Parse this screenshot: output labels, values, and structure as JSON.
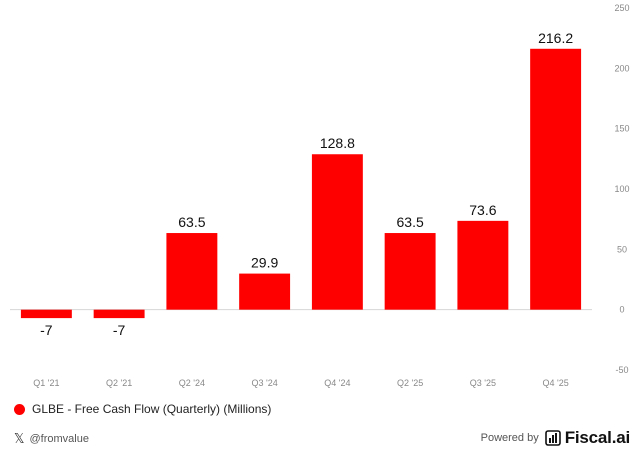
{
  "chart_data": {
    "type": "bar",
    "categories": [
      "Q1 '21",
      "Q2 '21",
      "Q2 '24",
      "Q3 '24",
      "Q4 '24",
      "Q2 '25",
      "Q3 '25",
      "Q4 '25"
    ],
    "series": [
      {
        "name": "GLBE - Free Cash Flow (Quarterly) (Millions)",
        "values": [
          -7,
          -7,
          63.5,
          29.9,
          128.8,
          63.5,
          73.6,
          216.2
        ],
        "data_labels": [
          "-7",
          "-7",
          "63.5",
          "29.9",
          "128.8",
          "63.5",
          "73.6",
          "216.2"
        ]
      }
    ],
    "ylim": [
      -50,
      250
    ],
    "yticks": [
      -50,
      0,
      50,
      100,
      150,
      200,
      250
    ],
    "y_axis_position": "right",
    "grid": false,
    "legend_position": "bottom-left",
    "colors": {
      "bar": "#ff0000"
    }
  },
  "legend": {
    "label": "GLBE - Free Cash Flow (Quarterly) (Millions)",
    "color": "#ff0000"
  },
  "footer": {
    "handle": "@fromvalue",
    "x_icon": "x-logo-icon",
    "powered_by": "Powered by",
    "brand": "Fiscal.ai"
  }
}
